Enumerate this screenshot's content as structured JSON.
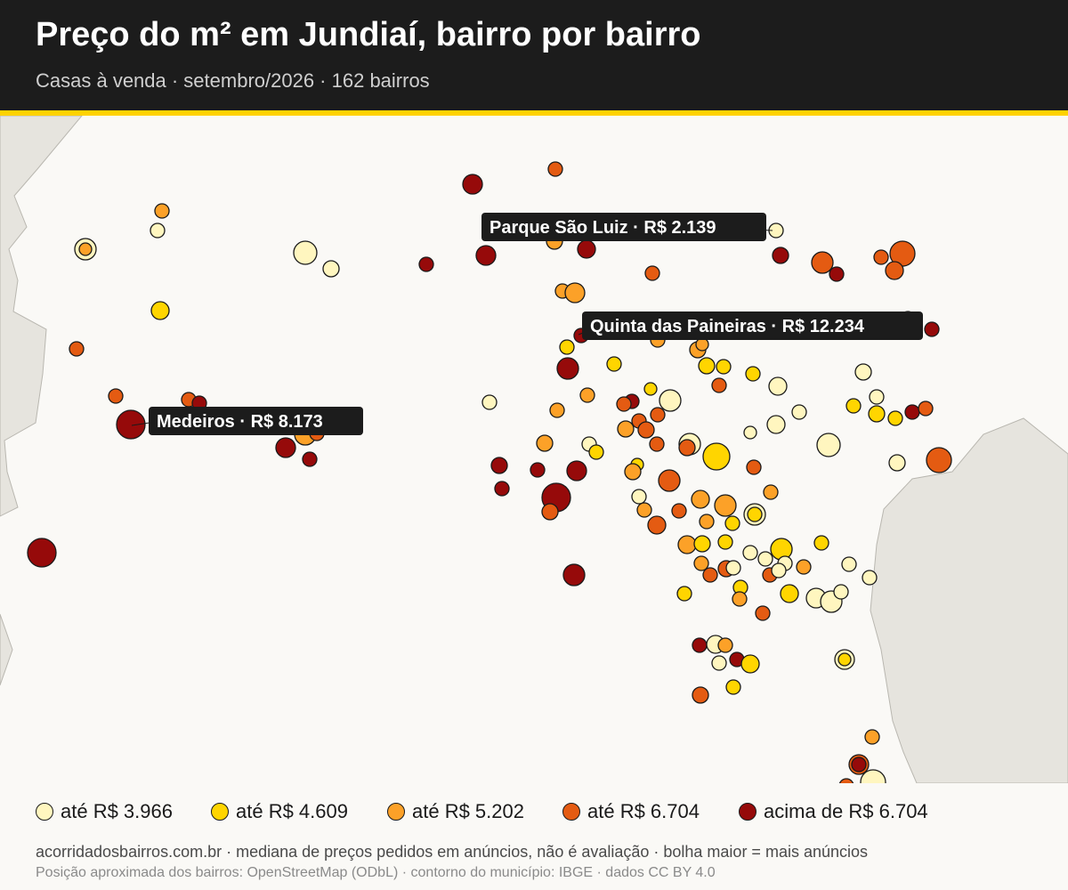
{
  "title": "Preço do m² em Jundiaí, bairro por bairro",
  "subtitle": "Casas à venda · setembro/2026 · 162 bairros",
  "colors": {
    "header_bg": "#1c1c1c",
    "header_rule": "#ffd200",
    "map_bg": "#faf9f6",
    "outside_area": "#e6e4de",
    "class_1": "#fff6bf",
    "class_2": "#ffd500",
    "class_3": "#fca128",
    "class_4": "#e45b12",
    "class_5": "#960a0a"
  },
  "legend": [
    {
      "label": "até R$ 3.966",
      "color": "#fff6bf"
    },
    {
      "label": "até R$ 4.609",
      "color": "#ffd500"
    },
    {
      "label": "até R$ 5.202",
      "color": "#fca128"
    },
    {
      "label": "até R$ 6.704",
      "color": "#e45b12"
    },
    {
      "label": "acima de R$ 6.704",
      "color": "#960a0a"
    }
  ],
  "callouts": [
    {
      "neighborhood": "Parque São Luiz",
      "price": "R$ 2.139"
    },
    {
      "neighborhood": "Quinta das Paineiras",
      "price": "R$ 12.234"
    },
    {
      "neighborhood": "Medeiros",
      "price": "R$ 8.173"
    }
  ],
  "footer": {
    "line1": "acorridadosbairros.com.br · mediana de preços pedidos em anúncios, não é avaliação · bolha maior = mais anúncios",
    "line2": "Posição aproximada dos bairros: OpenStreetMap (ODbL) · contorno do município: IBGE · dados CC BY 4.0"
  }
}
